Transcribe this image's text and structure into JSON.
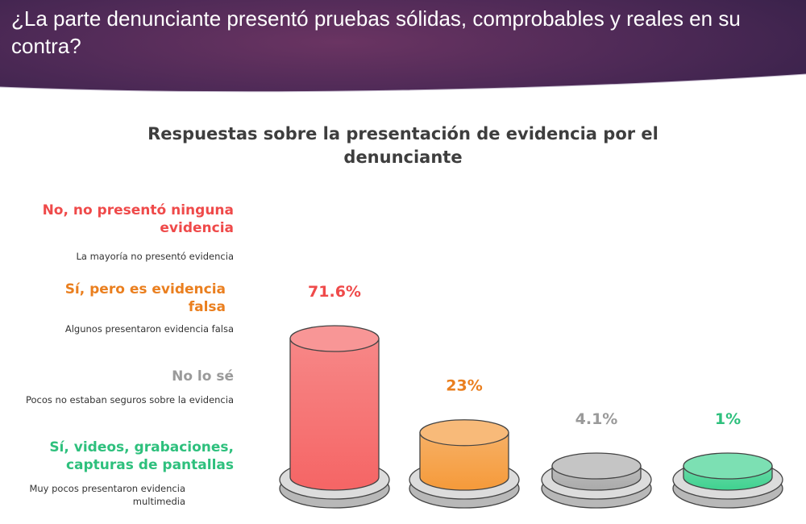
{
  "slide": {
    "question": "¿La parte denunciante presentó pruebas sólidas, comprobables y reales en su contra?"
  },
  "chart_data": {
    "type": "bar",
    "title": "Respuestas sobre la presentación de evidencia por el denunciante",
    "categories": [
      "No, no presentó ninguna evidencia",
      "Sí, pero es evidencia falsa",
      "No lo sé",
      "Sí, videos, grabaciones, capturas de pantallas"
    ],
    "values": [
      71.6,
      23,
      4.1,
      1
    ],
    "value_labels": [
      "71.6%",
      "23%",
      "4.1%",
      "1%"
    ],
    "descriptions": [
      "La mayoría no presentó evidencia",
      "Algunos presentaron evidencia falsa",
      "Pocos no estaban seguros sobre la evidencia",
      "Muy pocos presentaron evidencia multimedia"
    ],
    "colors": [
      "#f56565",
      "#f59a3a",
      "#aaaaaa",
      "#3fd18f"
    ],
    "label_colors": [
      "#ef4a4a",
      "#ea7f1f",
      "#9a9a9a",
      "#2ec07d"
    ],
    "xlabel": "",
    "ylabel": ""
  }
}
